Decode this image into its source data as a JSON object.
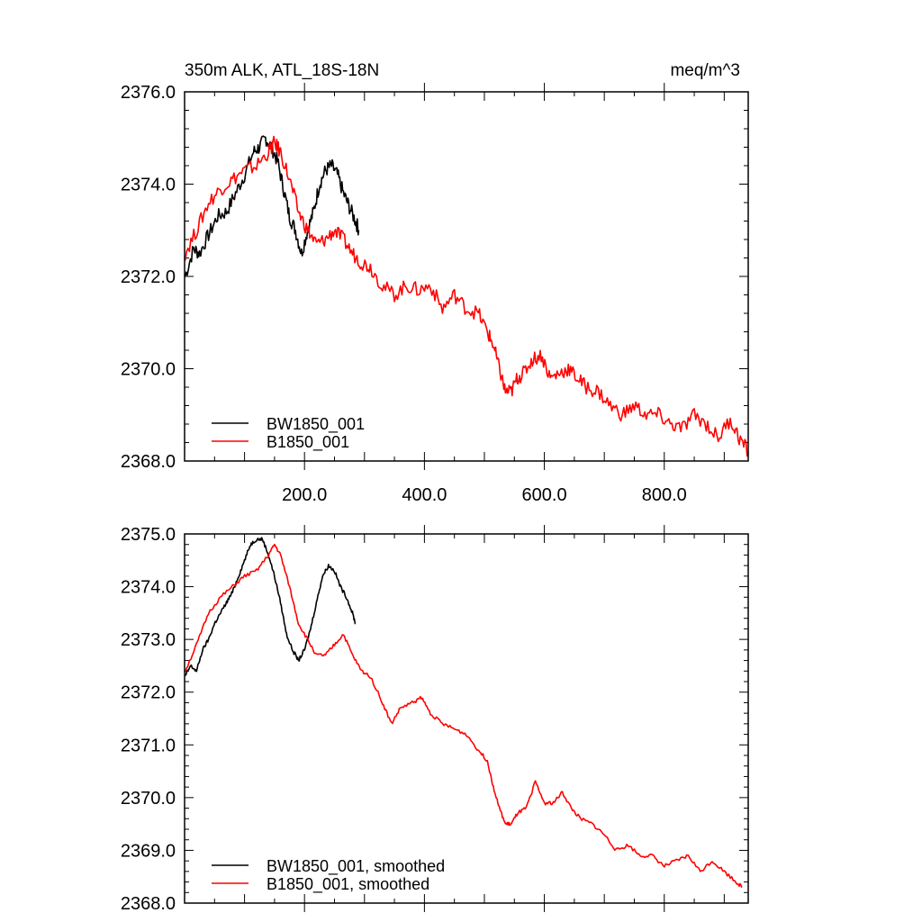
{
  "chart_data": [
    {
      "type": "line",
      "title": "350m ALK, ATL_18S-18N",
      "units": "meq/m^3",
      "xlim": [
        0,
        940
      ],
      "ylim": [
        2368.0,
        2376.0
      ],
      "x_ticks": [
        "200.0",
        "400.0",
        "600.0",
        "800.0"
      ],
      "y_ticks": [
        "2368.0",
        "2370.0",
        "2372.0",
        "2374.0",
        "2376.0"
      ],
      "legend_position": "bottom-left",
      "grid": false,
      "series": [
        {
          "name": "BW1850_001",
          "color": "#000000",
          "x": [
            1,
            15,
            25,
            40,
            55,
            70,
            85,
            100,
            115,
            125,
            135,
            145,
            155,
            165,
            175,
            185,
            195,
            205,
            215,
            225,
            235,
            245,
            255,
            265,
            275,
            285,
            291
          ],
          "y": [
            2372.0,
            2372.6,
            2372.5,
            2372.9,
            2373.3,
            2373.4,
            2373.8,
            2374.2,
            2374.7,
            2374.8,
            2375.0,
            2374.8,
            2374.5,
            2373.9,
            2373.3,
            2373.0,
            2372.5,
            2373.0,
            2373.4,
            2374.0,
            2374.3,
            2374.4,
            2374.2,
            2373.8,
            2373.5,
            2373.2,
            2373.0
          ]
        },
        {
          "name": "B1850_001",
          "color": "#ff0000",
          "x": [
            1,
            20,
            40,
            60,
            80,
            100,
            120,
            140,
            150,
            160,
            175,
            190,
            205,
            220,
            235,
            250,
            265,
            280,
            295,
            310,
            330,
            350,
            370,
            390,
            410,
            430,
            450,
            470,
            490,
            505,
            515,
            525,
            535,
            545,
            555,
            565,
            580,
            595,
            610,
            625,
            640,
            655,
            670,
            690,
            710,
            730,
            750,
            770,
            790,
            810,
            830,
            850,
            870,
            890,
            910,
            925,
            940
          ],
          "y": [
            2372.5,
            2373.0,
            2373.6,
            2373.9,
            2374.1,
            2374.3,
            2374.4,
            2374.7,
            2374.9,
            2374.7,
            2374.1,
            2373.4,
            2373.0,
            2372.7,
            2372.8,
            2373.0,
            2372.8,
            2372.5,
            2372.3,
            2372.2,
            2371.8,
            2371.6,
            2371.8,
            2371.7,
            2371.8,
            2371.3,
            2371.6,
            2371.3,
            2371.2,
            2370.8,
            2370.5,
            2370.0,
            2369.5,
            2369.5,
            2369.8,
            2369.9,
            2370.2,
            2370.3,
            2369.8,
            2369.9,
            2370.0,
            2369.8,
            2369.6,
            2369.5,
            2369.2,
            2369.0,
            2369.2,
            2369.0,
            2369.0,
            2368.8,
            2368.7,
            2369.0,
            2368.8,
            2368.5,
            2368.9,
            2368.5,
            2368.2
          ]
        }
      ]
    },
    {
      "type": "line",
      "title": "",
      "units": "",
      "xlim": [
        0,
        940
      ],
      "ylim": [
        2368.0,
        2375.0
      ],
      "x_ticks": [],
      "y_ticks": [
        "2368.0",
        "2369.0",
        "2370.0",
        "2371.0",
        "2372.0",
        "2373.0",
        "2374.0",
        "2375.0"
      ],
      "legend_position": "bottom-left",
      "grid": false,
      "series": [
        {
          "name": "BW1850_001, smoothed",
          "color": "#000000",
          "x": [
            1,
            10,
            20,
            30,
            40,
            50,
            60,
            70,
            80,
            90,
            100,
            110,
            120,
            130,
            140,
            150,
            160,
            170,
            180,
            190,
            200,
            210,
            220,
            230,
            240,
            250,
            260,
            270,
            280,
            285
          ],
          "y": [
            2372.3,
            2372.5,
            2372.4,
            2372.8,
            2373.0,
            2373.3,
            2373.5,
            2373.7,
            2373.9,
            2374.2,
            2374.5,
            2374.8,
            2374.9,
            2374.9,
            2374.6,
            2374.2,
            2373.7,
            2373.1,
            2372.8,
            2372.6,
            2372.8,
            2373.2,
            2373.7,
            2374.2,
            2374.4,
            2374.3,
            2374.0,
            2373.8,
            2373.5,
            2373.3
          ]
        },
        {
          "name": "B1850_001, smoothed",
          "color": "#ff0000",
          "x": [
            1,
            20,
            40,
            60,
            80,
            100,
            120,
            140,
            150,
            160,
            175,
            190,
            205,
            220,
            235,
            250,
            265,
            280,
            295,
            310,
            330,
            345,
            360,
            380,
            395,
            410,
            430,
            450,
            470,
            490,
            505,
            515,
            525,
            535,
            545,
            555,
            570,
            585,
            600,
            615,
            630,
            645,
            660,
            680,
            700,
            720,
            740,
            760,
            780,
            800,
            820,
            840,
            860,
            880,
            900,
            920,
            930
          ],
          "y": [
            2372.4,
            2372.9,
            2373.5,
            2373.8,
            2374.0,
            2374.2,
            2374.3,
            2374.6,
            2374.8,
            2374.6,
            2374.0,
            2373.3,
            2373.0,
            2372.7,
            2372.7,
            2372.9,
            2373.1,
            2372.7,
            2372.4,
            2372.3,
            2371.8,
            2371.4,
            2371.7,
            2371.8,
            2371.9,
            2371.6,
            2371.4,
            2371.3,
            2371.2,
            2370.9,
            2370.7,
            2370.2,
            2369.8,
            2369.5,
            2369.5,
            2369.7,
            2369.8,
            2370.3,
            2369.9,
            2369.9,
            2370.1,
            2369.8,
            2369.6,
            2369.5,
            2369.3,
            2369.0,
            2369.1,
            2368.9,
            2368.9,
            2368.7,
            2368.8,
            2368.9,
            2368.6,
            2368.8,
            2368.6,
            2368.4,
            2368.3
          ]
        }
      ]
    }
  ]
}
